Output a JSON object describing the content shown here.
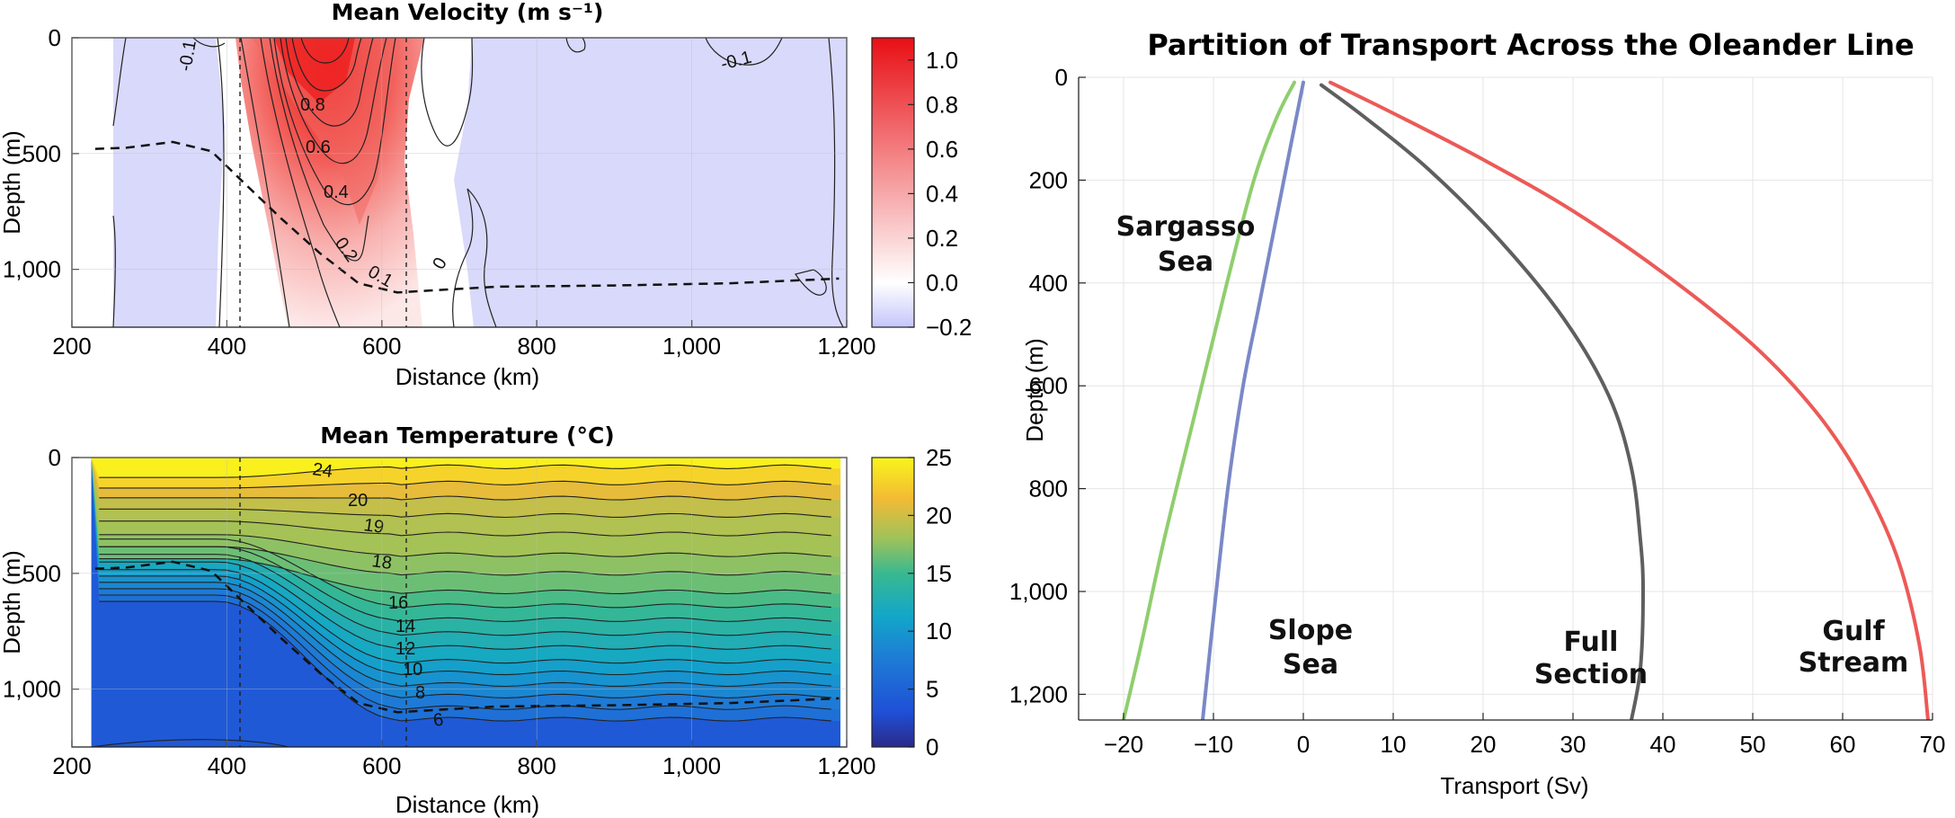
{
  "colors": {
    "velocity_pos": "#e8141a",
    "velocity_neg": "#d8d9fb",
    "temp_warm": "#f8e81c",
    "temp_cold": "#1e3fcf",
    "sargasso": "#8fce6e",
    "slope": "#7b88c7",
    "full": "#5f5f5f",
    "gulf": "#ec5a57"
  },
  "chart_data": [
    {
      "id": "velocity",
      "type": "heatmap",
      "title": "Mean Velocity (m s⁻¹)",
      "xlabel": "Distance (km)",
      "ylabel": "Depth (m)",
      "xlim": [
        200,
        1200
      ],
      "ylim": [
        0,
        1250
      ],
      "x_ticks": [
        200,
        400,
        600,
        800,
        1000,
        1200
      ],
      "x_tick_labels": [
        "200",
        "400",
        "600",
        "800",
        "1,000",
        "1,200"
      ],
      "y_ticks": [
        0,
        500,
        1000
      ],
      "y_tick_labels": [
        "0",
        "500",
        "1,000"
      ],
      "colorbar": {
        "range": [
          -0.2,
          1.1
        ],
        "ticks": [
          1.0,
          0.8,
          0.6,
          0.4,
          0.2,
          0.0,
          -0.2
        ],
        "tick_labels": [
          "1.0",
          "0.8",
          "0.6",
          "0.4",
          "0.2",
          "0.0",
          "−0.2"
        ]
      },
      "contour_labels": [
        "-0.1",
        "0.8",
        "0.6",
        "0.4",
        "0.2",
        "0.1",
        "0",
        "-0.1"
      ],
      "vertical_lines_km": [
        395,
        620
      ],
      "core": {
        "x_km": 490,
        "depth_m": 0,
        "max_value": 1.1
      },
      "dashed_line": {
        "x": [
          230,
          270,
          330,
          380,
          420,
          470,
          520,
          570,
          620,
          670,
          750,
          900,
          1050,
          1190
        ],
        "depth": [
          480,
          475,
          450,
          490,
          620,
          780,
          930,
          1060,
          1100,
          1090,
          1075,
          1070,
          1060,
          1040
        ]
      }
    },
    {
      "id": "temperature",
      "type": "heatmap",
      "title": "Mean Temperature (°C)",
      "xlabel": "Distance (km)",
      "ylabel": "Depth (m)",
      "xlim": [
        200,
        1200
      ],
      "ylim": [
        0,
        1250
      ],
      "x_ticks": [
        200,
        400,
        600,
        800,
        1000,
        1200
      ],
      "x_tick_labels": [
        "200",
        "400",
        "600",
        "800",
        "1,000",
        "1,200"
      ],
      "y_ticks": [
        0,
        500,
        1000
      ],
      "y_tick_labels": [
        "0",
        "500",
        "1,000"
      ],
      "colorbar": {
        "range": [
          0,
          25
        ],
        "ticks": [
          25,
          20,
          15,
          10,
          5,
          0
        ],
        "tick_labels": [
          "25",
          "20",
          "15",
          "10",
          "5",
          "0"
        ]
      },
      "contour_labels": [
        "24",
        "20",
        "19",
        "18",
        "16",
        "14",
        "12",
        "10",
        "8",
        "6"
      ],
      "vertical_lines_km": [
        395,
        620
      ],
      "east_isotherms": [
        {
          "temp": 24,
          "depth": 40
        },
        {
          "temp": 22,
          "depth": 110
        },
        {
          "temp": 20,
          "depth": 175
        },
        {
          "temp": 19,
          "depth": 250
        },
        {
          "temp": 18.5,
          "depth": 330
        },
        {
          "temp": 18,
          "depth": 420
        },
        {
          "temp": 17,
          "depth": 500
        },
        {
          "temp": 16,
          "depth": 580
        },
        {
          "temp": 15,
          "depth": 640
        },
        {
          "temp": 14,
          "depth": 700
        },
        {
          "temp": 13,
          "depth": 760
        },
        {
          "temp": 12,
          "depth": 820
        },
        {
          "temp": 11,
          "depth": 880
        },
        {
          "temp": 10,
          "depth": 930
        },
        {
          "temp": 9,
          "depth": 980
        },
        {
          "temp": 8,
          "depth": 1030
        },
        {
          "temp": 7,
          "depth": 1080
        },
        {
          "temp": 6,
          "depth": 1130
        }
      ],
      "dashed_line": {
        "x": [
          230,
          270,
          330,
          380,
          420,
          470,
          520,
          570,
          620,
          670,
          750,
          900,
          1050,
          1190
        ],
        "depth": [
          480,
          475,
          450,
          490,
          620,
          780,
          930,
          1060,
          1100,
          1090,
          1075,
          1070,
          1060,
          1040
        ]
      }
    },
    {
      "id": "transport",
      "type": "line",
      "title": "Partition of Transport Across the Oleander Line",
      "xlabel": "Transport (Sv)",
      "ylabel": "Depth (m)",
      "xlim": [
        -25,
        70
      ],
      "ylim": [
        0,
        1250
      ],
      "x_ticks": [
        -20,
        -10,
        0,
        10,
        20,
        30,
        40,
        50,
        60,
        70
      ],
      "x_tick_labels": [
        "−20",
        "−10",
        "0",
        "10",
        "20",
        "30",
        "40",
        "50",
        "60",
        "70"
      ],
      "y_ticks": [
        0,
        200,
        400,
        600,
        800,
        1000,
        1200
      ],
      "y_tick_labels": [
        "0",
        "200",
        "400",
        "600",
        "800",
        "1,000",
        "1,200"
      ],
      "series": [
        {
          "name": "Sargasso Sea",
          "x": [
            -1,
            -3,
            -5.5,
            -8.5,
            -12,
            -15.5,
            -18,
            -20
          ],
          "y": [
            10,
            80,
            200,
            400,
            650,
            900,
            1100,
            1250
          ]
        },
        {
          "name": "Slope Sea",
          "x": [
            0,
            -1.6,
            -3.3,
            -5,
            -6.7,
            -8.4,
            -10,
            -11.2
          ],
          "y": [
            10,
            150,
            300,
            450,
            600,
            800,
            1050,
            1250
          ]
        },
        {
          "name": "Full Section",
          "x": [
            2,
            7,
            14,
            22,
            29,
            34,
            36.5,
            37.5,
            37.8,
            37.5,
            36.5
          ],
          "y": [
            15,
            80,
            180,
            320,
            470,
            620,
            760,
            900,
            1000,
            1150,
            1250
          ]
        },
        {
          "name": "Gulf Stream",
          "x": [
            3,
            10,
            20,
            30,
            40,
            50,
            57,
            62,
            66,
            68.5,
            69.5
          ],
          "y": [
            10,
            70,
            160,
            260,
            380,
            520,
            650,
            780,
            930,
            1100,
            1250
          ]
        }
      ],
      "annotations": [
        {
          "lines": [
            "Sargasso",
            "Sea"
          ]
        },
        {
          "lines": [
            "Slope",
            "Sea"
          ]
        },
        {
          "lines": [
            "Full",
            "Section"
          ]
        },
        {
          "lines": [
            "Gulf",
            "Stream"
          ]
        }
      ]
    }
  ]
}
